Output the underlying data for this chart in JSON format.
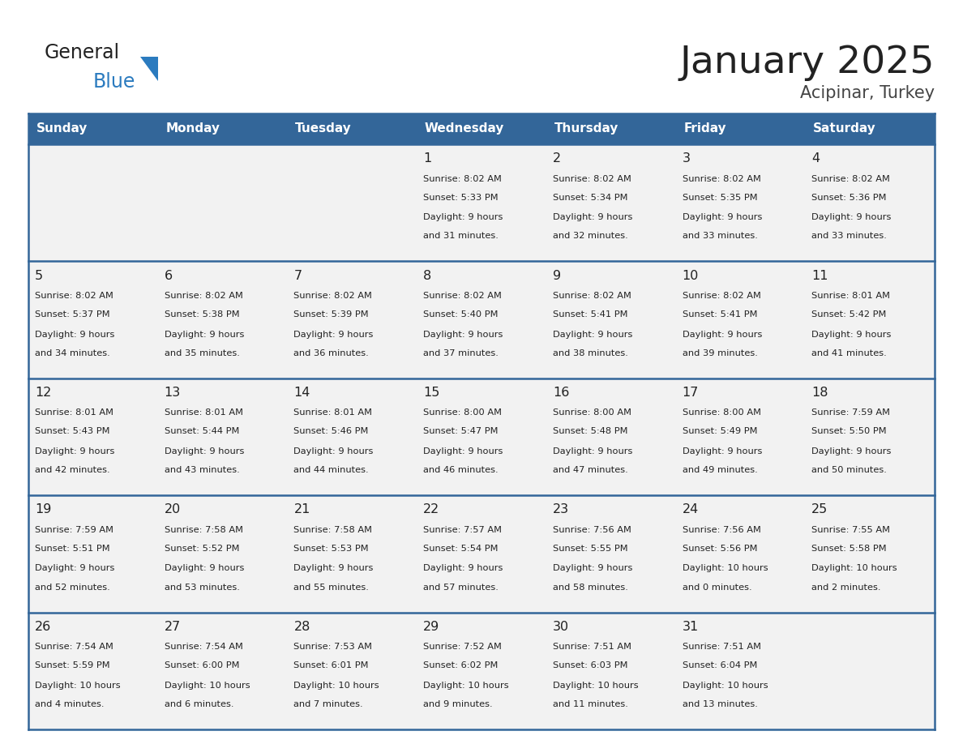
{
  "title": "January 2025",
  "subtitle": "Acipinar, Turkey",
  "days_of_week": [
    "Sunday",
    "Monday",
    "Tuesday",
    "Wednesday",
    "Thursday",
    "Friday",
    "Saturday"
  ],
  "header_bg": "#336699",
  "header_text": "#ffffff",
  "cell_bg": "#f2f2f2",
  "border_color": "#336699",
  "day_num_color": "#222222",
  "text_color": "#222222",
  "logo_general_color": "#222222",
  "logo_blue_color": "#2b7bbf",
  "logo_triangle_color": "#2b7bbf",
  "title_color": "#222222",
  "subtitle_color": "#444444",
  "calendar": [
    [
      {
        "day": "",
        "sunrise": "",
        "sunset": "",
        "daylight": ""
      },
      {
        "day": "",
        "sunrise": "",
        "sunset": "",
        "daylight": ""
      },
      {
        "day": "",
        "sunrise": "",
        "sunset": "",
        "daylight": ""
      },
      {
        "day": "1",
        "sunrise": "8:02 AM",
        "sunset": "5:33 PM",
        "daylight": "9 hours and 31 minutes."
      },
      {
        "day": "2",
        "sunrise": "8:02 AM",
        "sunset": "5:34 PM",
        "daylight": "9 hours and 32 minutes."
      },
      {
        "day": "3",
        "sunrise": "8:02 AM",
        "sunset": "5:35 PM",
        "daylight": "9 hours and 33 minutes."
      },
      {
        "day": "4",
        "sunrise": "8:02 AM",
        "sunset": "5:36 PM",
        "daylight": "9 hours and 33 minutes."
      }
    ],
    [
      {
        "day": "5",
        "sunrise": "8:02 AM",
        "sunset": "5:37 PM",
        "daylight": "9 hours and 34 minutes."
      },
      {
        "day": "6",
        "sunrise": "8:02 AM",
        "sunset": "5:38 PM",
        "daylight": "9 hours and 35 minutes."
      },
      {
        "day": "7",
        "sunrise": "8:02 AM",
        "sunset": "5:39 PM",
        "daylight": "9 hours and 36 minutes."
      },
      {
        "day": "8",
        "sunrise": "8:02 AM",
        "sunset": "5:40 PM",
        "daylight": "9 hours and 37 minutes."
      },
      {
        "day": "9",
        "sunrise": "8:02 AM",
        "sunset": "5:41 PM",
        "daylight": "9 hours and 38 minutes."
      },
      {
        "day": "10",
        "sunrise": "8:02 AM",
        "sunset": "5:41 PM",
        "daylight": "9 hours and 39 minutes."
      },
      {
        "day": "11",
        "sunrise": "8:01 AM",
        "sunset": "5:42 PM",
        "daylight": "9 hours and 41 minutes."
      }
    ],
    [
      {
        "day": "12",
        "sunrise": "8:01 AM",
        "sunset": "5:43 PM",
        "daylight": "9 hours and 42 minutes."
      },
      {
        "day": "13",
        "sunrise": "8:01 AM",
        "sunset": "5:44 PM",
        "daylight": "9 hours and 43 minutes."
      },
      {
        "day": "14",
        "sunrise": "8:01 AM",
        "sunset": "5:46 PM",
        "daylight": "9 hours and 44 minutes."
      },
      {
        "day": "15",
        "sunrise": "8:00 AM",
        "sunset": "5:47 PM",
        "daylight": "9 hours and 46 minutes."
      },
      {
        "day": "16",
        "sunrise": "8:00 AM",
        "sunset": "5:48 PM",
        "daylight": "9 hours and 47 minutes."
      },
      {
        "day": "17",
        "sunrise": "8:00 AM",
        "sunset": "5:49 PM",
        "daylight": "9 hours and 49 minutes."
      },
      {
        "day": "18",
        "sunrise": "7:59 AM",
        "sunset": "5:50 PM",
        "daylight": "9 hours and 50 minutes."
      }
    ],
    [
      {
        "day": "19",
        "sunrise": "7:59 AM",
        "sunset": "5:51 PM",
        "daylight": "9 hours and 52 minutes."
      },
      {
        "day": "20",
        "sunrise": "7:58 AM",
        "sunset": "5:52 PM",
        "daylight": "9 hours and 53 minutes."
      },
      {
        "day": "21",
        "sunrise": "7:58 AM",
        "sunset": "5:53 PM",
        "daylight": "9 hours and 55 minutes."
      },
      {
        "day": "22",
        "sunrise": "7:57 AM",
        "sunset": "5:54 PM",
        "daylight": "9 hours and 57 minutes."
      },
      {
        "day": "23",
        "sunrise": "7:56 AM",
        "sunset": "5:55 PM",
        "daylight": "9 hours and 58 minutes."
      },
      {
        "day": "24",
        "sunrise": "7:56 AM",
        "sunset": "5:56 PM",
        "daylight": "10 hours and 0 minutes."
      },
      {
        "day": "25",
        "sunrise": "7:55 AM",
        "sunset": "5:58 PM",
        "daylight": "10 hours and 2 minutes."
      }
    ],
    [
      {
        "day": "26",
        "sunrise": "7:54 AM",
        "sunset": "5:59 PM",
        "daylight": "10 hours and 4 minutes."
      },
      {
        "day": "27",
        "sunrise": "7:54 AM",
        "sunset": "6:00 PM",
        "daylight": "10 hours and 6 minutes."
      },
      {
        "day": "28",
        "sunrise": "7:53 AM",
        "sunset": "6:01 PM",
        "daylight": "10 hours and 7 minutes."
      },
      {
        "day": "29",
        "sunrise": "7:52 AM",
        "sunset": "6:02 PM",
        "daylight": "10 hours and 9 minutes."
      },
      {
        "day": "30",
        "sunrise": "7:51 AM",
        "sunset": "6:03 PM",
        "daylight": "10 hours and 11 minutes."
      },
      {
        "day": "31",
        "sunrise": "7:51 AM",
        "sunset": "6:04 PM",
        "daylight": "10 hours and 13 minutes."
      },
      {
        "day": "",
        "sunrise": "",
        "sunset": "",
        "daylight": ""
      }
    ]
  ]
}
